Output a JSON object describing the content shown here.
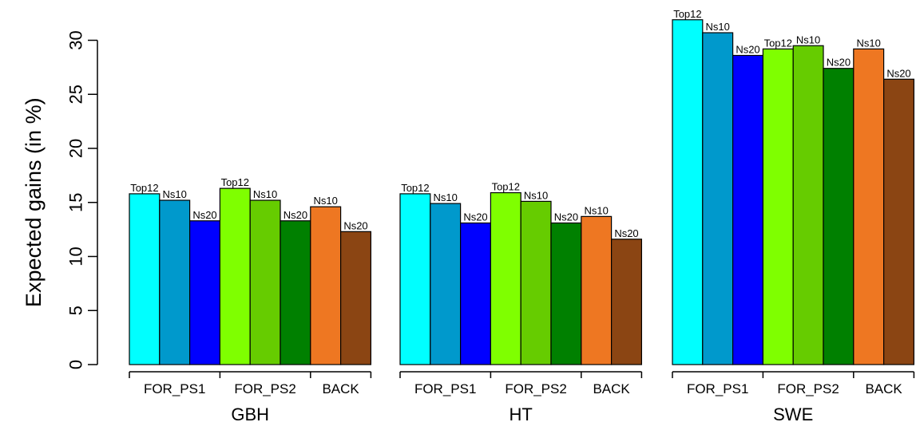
{
  "chart_data": {
    "type": "bar",
    "ylabel": "Expected gains (in %)",
    "ylim": [
      0,
      32
    ],
    "yticks": [
      0,
      5,
      10,
      15,
      20,
      25,
      30
    ],
    "grid": false,
    "bar_colors": [
      "#00FFFF",
      "#0099CC",
      "#0000FF",
      "#7FFF00",
      "#66CC00",
      "#008000",
      "#EE7722",
      "#8B4513"
    ],
    "panels": [
      {
        "name": "GBH",
        "groups": [
          {
            "name": "FOR_PS1",
            "bars": [
              {
                "label": "Top12",
                "value": 15.8
              },
              {
                "label": "Ns10",
                "value": 15.2
              },
              {
                "label": "Ns20",
                "value": 13.3
              }
            ]
          },
          {
            "name": "FOR_PS2",
            "bars": [
              {
                "label": "Top12",
                "value": 16.3
              },
              {
                "label": "Ns10",
                "value": 15.2
              },
              {
                "label": "Ns20",
                "value": 13.3
              }
            ]
          },
          {
            "name": "BACK",
            "bars": [
              {
                "label": "Ns10",
                "value": 14.6
              },
              {
                "label": "Ns20",
                "value": 12.3
              }
            ]
          }
        ]
      },
      {
        "name": "HT",
        "groups": [
          {
            "name": "FOR_PS1",
            "bars": [
              {
                "label": "Top12",
                "value": 15.8
              },
              {
                "label": "Ns10",
                "value": 14.9
              },
              {
                "label": "Ns20",
                "value": 13.1
              }
            ]
          },
          {
            "name": "FOR_PS2",
            "bars": [
              {
                "label": "Top12",
                "value": 15.9
              },
              {
                "label": "Ns10",
                "value": 15.1
              },
              {
                "label": "Ns20",
                "value": 13.1
              }
            ]
          },
          {
            "name": "BACK",
            "bars": [
              {
                "label": "Ns10",
                "value": 13.7
              },
              {
                "label": "Ns20",
                "value": 11.6
              }
            ]
          }
        ]
      },
      {
        "name": "SWE",
        "groups": [
          {
            "name": "FOR_PS1",
            "bars": [
              {
                "label": "Top12",
                "value": 31.9
              },
              {
                "label": "Ns10",
                "value": 30.7
              },
              {
                "label": "Ns20",
                "value": 28.6
              }
            ]
          },
          {
            "name": "FOR_PS2",
            "bars": [
              {
                "label": "Top12",
                "value": 29.2
              },
              {
                "label": "Ns10",
                "value": 29.5
              },
              {
                "label": "Ns20",
                "value": 27.4
              }
            ]
          },
          {
            "name": "BACK",
            "bars": [
              {
                "label": "Ns10",
                "value": 29.2
              },
              {
                "label": "Ns20",
                "value": 26.4
              }
            ]
          }
        ]
      }
    ]
  }
}
